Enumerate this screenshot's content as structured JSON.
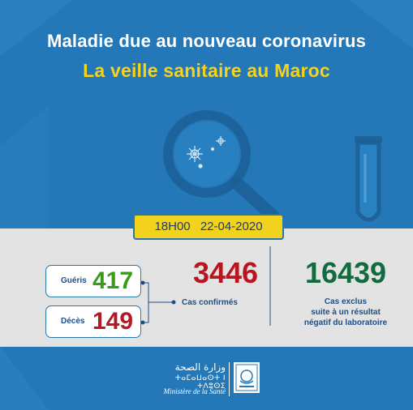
{
  "header": {
    "title": "Maladie due au nouveau coronavirus",
    "subtitle": "La veille sanitaire au Maroc"
  },
  "date": {
    "time": "18H00",
    "day": "22-04-2020"
  },
  "stats": {
    "gueris": {
      "label": "Guéris",
      "value": "417"
    },
    "deces": {
      "label": "Décès",
      "value": "149"
    },
    "confirmed": {
      "value": "3446",
      "label": "Cas confirmés"
    },
    "excluded": {
      "value": "16439",
      "label_line1": "Cas exclus",
      "label_line2": "suite à un résultat",
      "label_line3": "négatif du laboratoire"
    }
  },
  "footer": {
    "arabic": "وزارة الصحة",
    "tifinagh": "ⵜⴰⵎⴰⵡⴰⵙⵜ ⵏ ⵜⴷⵓⵙⵉ",
    "french": "Ministère de la Santé"
  },
  "colors": {
    "background": "#2478b8",
    "title": "#ffffff",
    "subtitle": "#f6d31a",
    "band": "#e3e3e3",
    "date_box": "#f3d21d",
    "gueris": "#3a9a1c",
    "deces": "#b31a26",
    "confirmed": "#b9141f",
    "excluded": "#136a3e"
  },
  "icons": [
    "magnifier-icon",
    "virus-icon",
    "test-tube-icon",
    "ministry-logo-icon"
  ]
}
